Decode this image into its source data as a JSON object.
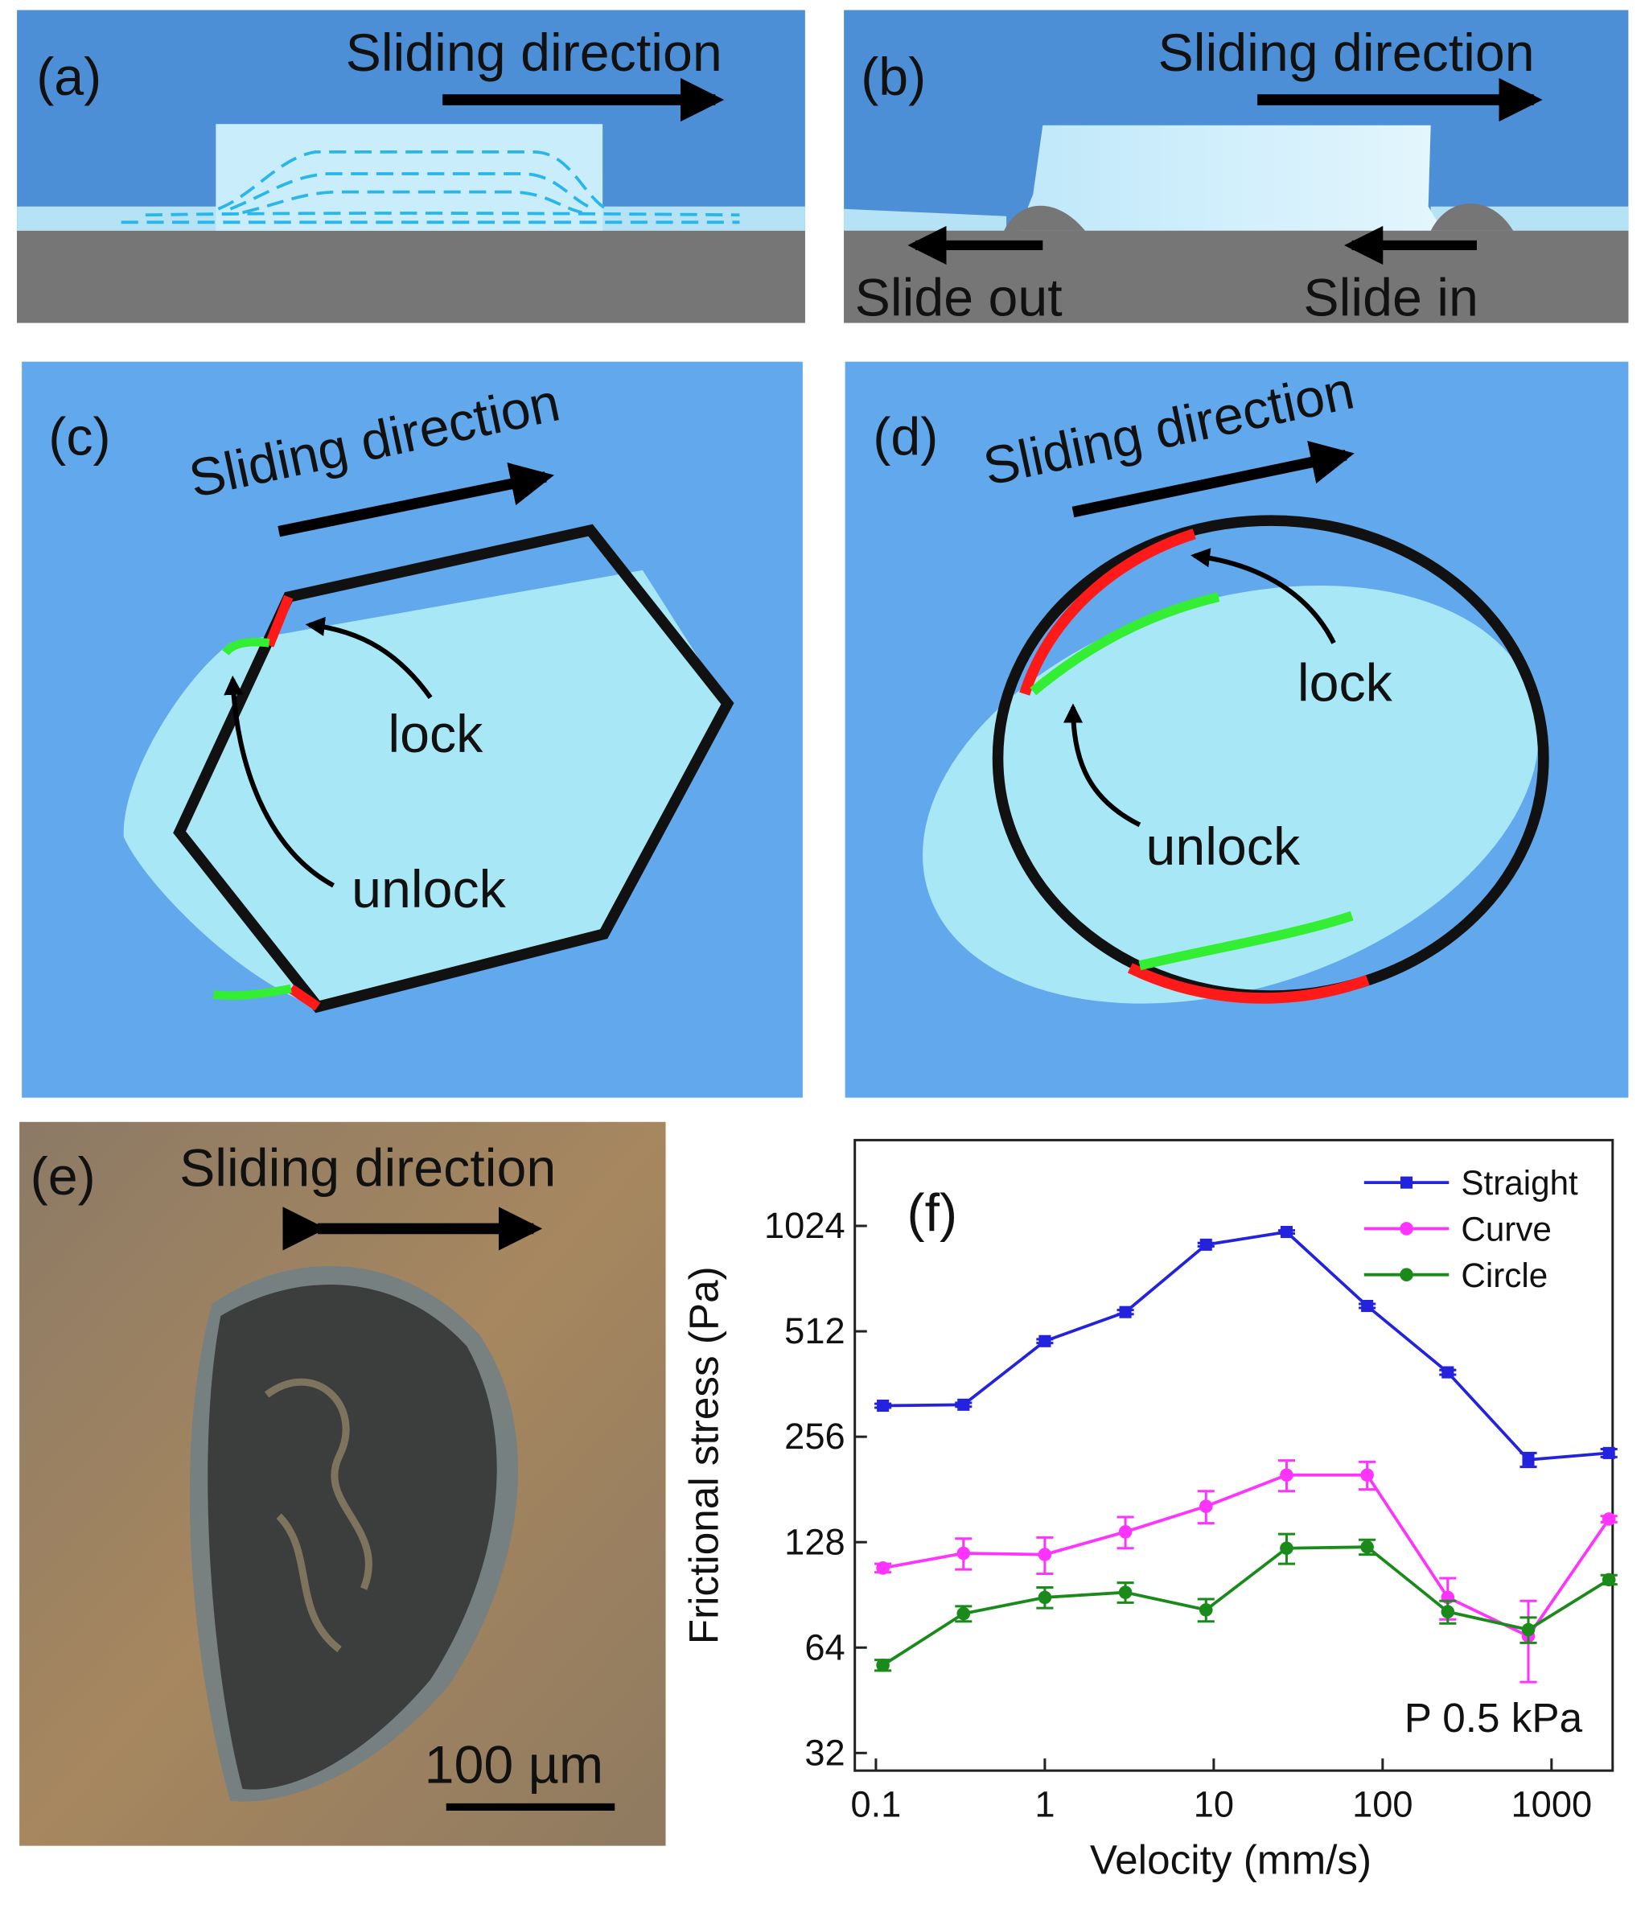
{
  "panels": {
    "a": {
      "label": "(a)",
      "direction": "Sliding direction"
    },
    "b": {
      "label": "(b)",
      "direction": "Sliding direction",
      "left": "Slide out",
      "right": "Slide in"
    },
    "c": {
      "label": "(c)",
      "direction": "Sliding direction",
      "lock": "lock",
      "unlock": "unlock"
    },
    "d": {
      "label": "(d)",
      "direction": "Sliding direction",
      "lock": "lock",
      "unlock": "unlock"
    },
    "e": {
      "label": "(e)",
      "direction": "Sliding direction",
      "scale": "100 µm"
    }
  },
  "chart_data": {
    "type": "line",
    "label": "(f)",
    "x_label": "Velocity (mm/s)",
    "y_label": "Frictional stress (Pa)",
    "annotation": "P 0.5 kPa",
    "xscale": "log",
    "yscale": "log",
    "legend": "upper right",
    "x": [
      0.11,
      0.33,
      1,
      3,
      9,
      27,
      81,
      243,
      729,
      2187
    ],
    "series": [
      {
        "name": "Straight",
        "color": "#2323dd",
        "marker": "square",
        "values": [
          314,
          316,
          480,
          581,
          905,
          984,
          605,
          391,
          220,
          230
        ],
        "errors": [
          4,
          4,
          6,
          8,
          10,
          10,
          8,
          6,
          10,
          6
        ]
      },
      {
        "name": "Curve",
        "color": "#ff33ff",
        "marker": "circle",
        "values": [
          108,
          119,
          118,
          137,
          162,
          199,
          199,
          89,
          69,
          149
        ],
        "errors": [
          3,
          12,
          14,
          14,
          17,
          20,
          18,
          12,
          18,
          3
        ]
      },
      {
        "name": "Circle",
        "color": "#1a8a1a",
        "marker": "circle",
        "values": [
          57,
          80,
          89,
          92,
          82,
          123,
          124,
          81,
          72,
          100
        ],
        "errors": [
          2,
          4,
          6,
          6,
          6,
          12,
          6,
          6,
          6,
          3
        ]
      }
    ],
    "xlim": [
      0.075,
      2300
    ],
    "xticks": [
      0.1,
      1,
      10,
      100,
      1000
    ],
    "ylim": [
      28.5,
      1800
    ],
    "yticks": [
      32,
      64,
      128,
      256,
      512,
      1024
    ]
  }
}
